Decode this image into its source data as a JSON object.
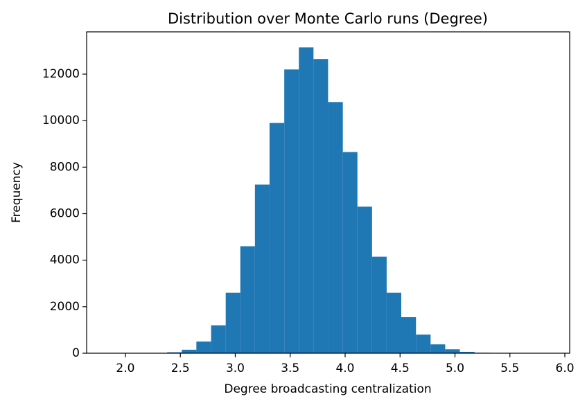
{
  "chart_data": {
    "type": "histogram",
    "title": "Distribution over Monte Carlo runs (Degree)",
    "xlabel": "Degree broadcasting centralization",
    "ylabel": "Frequency",
    "bins": [
      1.847,
      1.98,
      2.113,
      2.247,
      2.38,
      2.513,
      2.646,
      2.78,
      2.913,
      3.046,
      3.179,
      3.312,
      3.446,
      3.579,
      3.712,
      3.845,
      3.979,
      4.112,
      4.245,
      4.378,
      4.511,
      4.645,
      4.778,
      4.911,
      5.044,
      5.178,
      5.311,
      5.444,
      5.577,
      5.711,
      5.844
    ],
    "values": [
      1,
      0,
      2,
      8,
      40,
      150,
      500,
      1200,
      2600,
      4600,
      7250,
      9900,
      12200,
      13150,
      12650,
      10800,
      8650,
      6300,
      4150,
      2600,
      1550,
      800,
      380,
      170,
      60,
      20,
      6,
      2,
      0,
      1
    ],
    "color": "#1f77b4",
    "xlim": [
      1.647,
      6.044
    ],
    "xticks": [
      {
        "value": 2,
        "label": "2.0"
      },
      2.5,
      {
        "value": 3,
        "label": "3.0"
      },
      3.5,
      {
        "value": 4,
        "label": "4.0"
      },
      4.5,
      {
        "value": 5,
        "label": "5.0"
      },
      5.5,
      {
        "value": 6,
        "label": "6.0"
      }
    ],
    "ylim": [
      0,
      13817
    ],
    "yticks": [
      0,
      2000,
      4000,
      6000,
      8000,
      10000,
      12000
    ],
    "grid": false
  }
}
